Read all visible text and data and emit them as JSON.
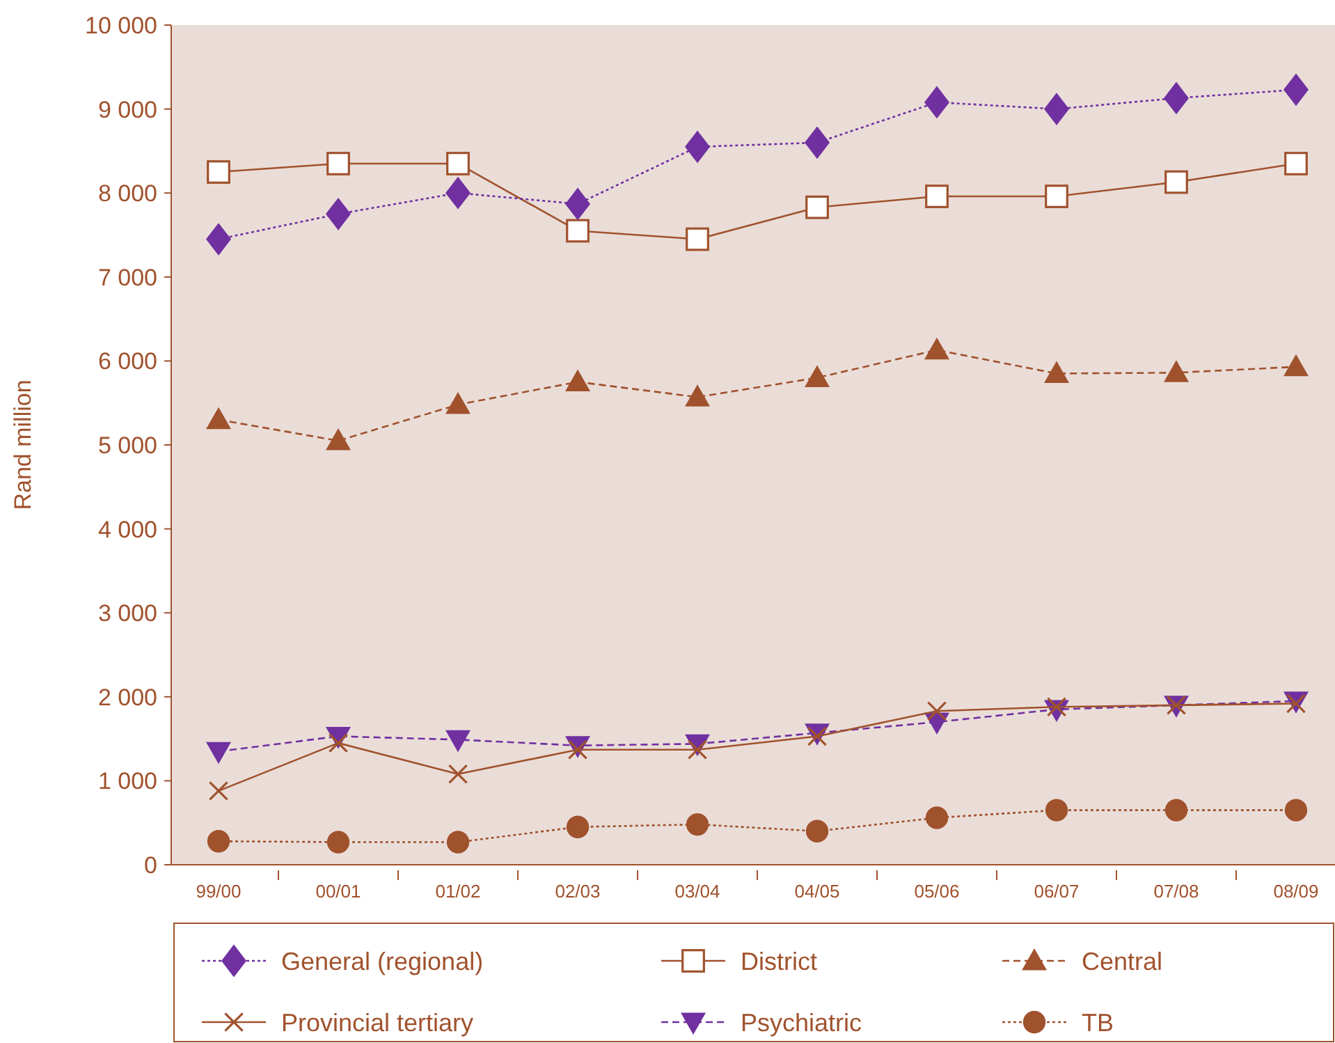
{
  "chart_data": {
    "type": "line",
    "ylabel": "Rand million",
    "categories": [
      "99/00",
      "00/01",
      "01/02",
      "02/03",
      "03/04",
      "04/05",
      "05/06",
      "06/07",
      "07/08",
      "08/09"
    ],
    "ylim": [
      0,
      10000
    ],
    "yticks": [
      0,
      {
        "value": 1000,
        "label": "1 000"
      },
      {
        "value": 2000,
        "label": "2 000"
      },
      {
        "value": 3000,
        "label": "3 000"
      },
      {
        "value": 4000,
        "label": "4 000"
      },
      {
        "value": 5000,
        "label": "5 000"
      },
      {
        "value": 6000,
        "label": "6 000"
      },
      {
        "value": 7000,
        "label": "7 000"
      },
      {
        "value": 8000,
        "label": "8 000"
      },
      {
        "value": 9000,
        "label": "9 000"
      },
      {
        "value": 10000,
        "label": "10 000"
      }
    ],
    "grid": false,
    "legend": "bottom",
    "series": [
      {
        "name": "General (regional)",
        "color": "#7030a0",
        "marker": "diamond",
        "line_style": "dotted",
        "values": [
          7450,
          7750,
          8000,
          7870,
          8550,
          8600,
          9080,
          9000,
          9130,
          9230
        ]
      },
      {
        "name": "District",
        "color": "#a0522d",
        "marker": "square",
        "line_style": "solid",
        "values": [
          8250,
          8350,
          8350,
          7550,
          7450,
          7830,
          7960,
          7960,
          8130,
          8350
        ]
      },
      {
        "name": "Central",
        "color": "#a0522d",
        "marker": "triangle",
        "line_style": "dashed",
        "values": [
          5300,
          5050,
          5480,
          5750,
          5570,
          5800,
          6130,
          5850,
          5860,
          5930
        ]
      },
      {
        "name": "Provincial tertiary",
        "color": "#a0522d",
        "marker": "cross",
        "line_style": "solid",
        "values": [
          880,
          1450,
          1080,
          1370,
          1370,
          1530,
          1830,
          1880,
          1900,
          1920
        ]
      },
      {
        "name": "Psychiatric",
        "color": "#7030a0",
        "marker": "triangle-down",
        "line_style": "dashed",
        "values": [
          1350,
          1530,
          1490,
          1420,
          1440,
          1570,
          1700,
          1850,
          1900,
          1950
        ]
      },
      {
        "name": "TB",
        "color": "#a0522d",
        "marker": "circle",
        "line_style": "dotted",
        "values": [
          280,
          270,
          270,
          450,
          480,
          400,
          560,
          650,
          650,
          650
        ]
      }
    ]
  }
}
